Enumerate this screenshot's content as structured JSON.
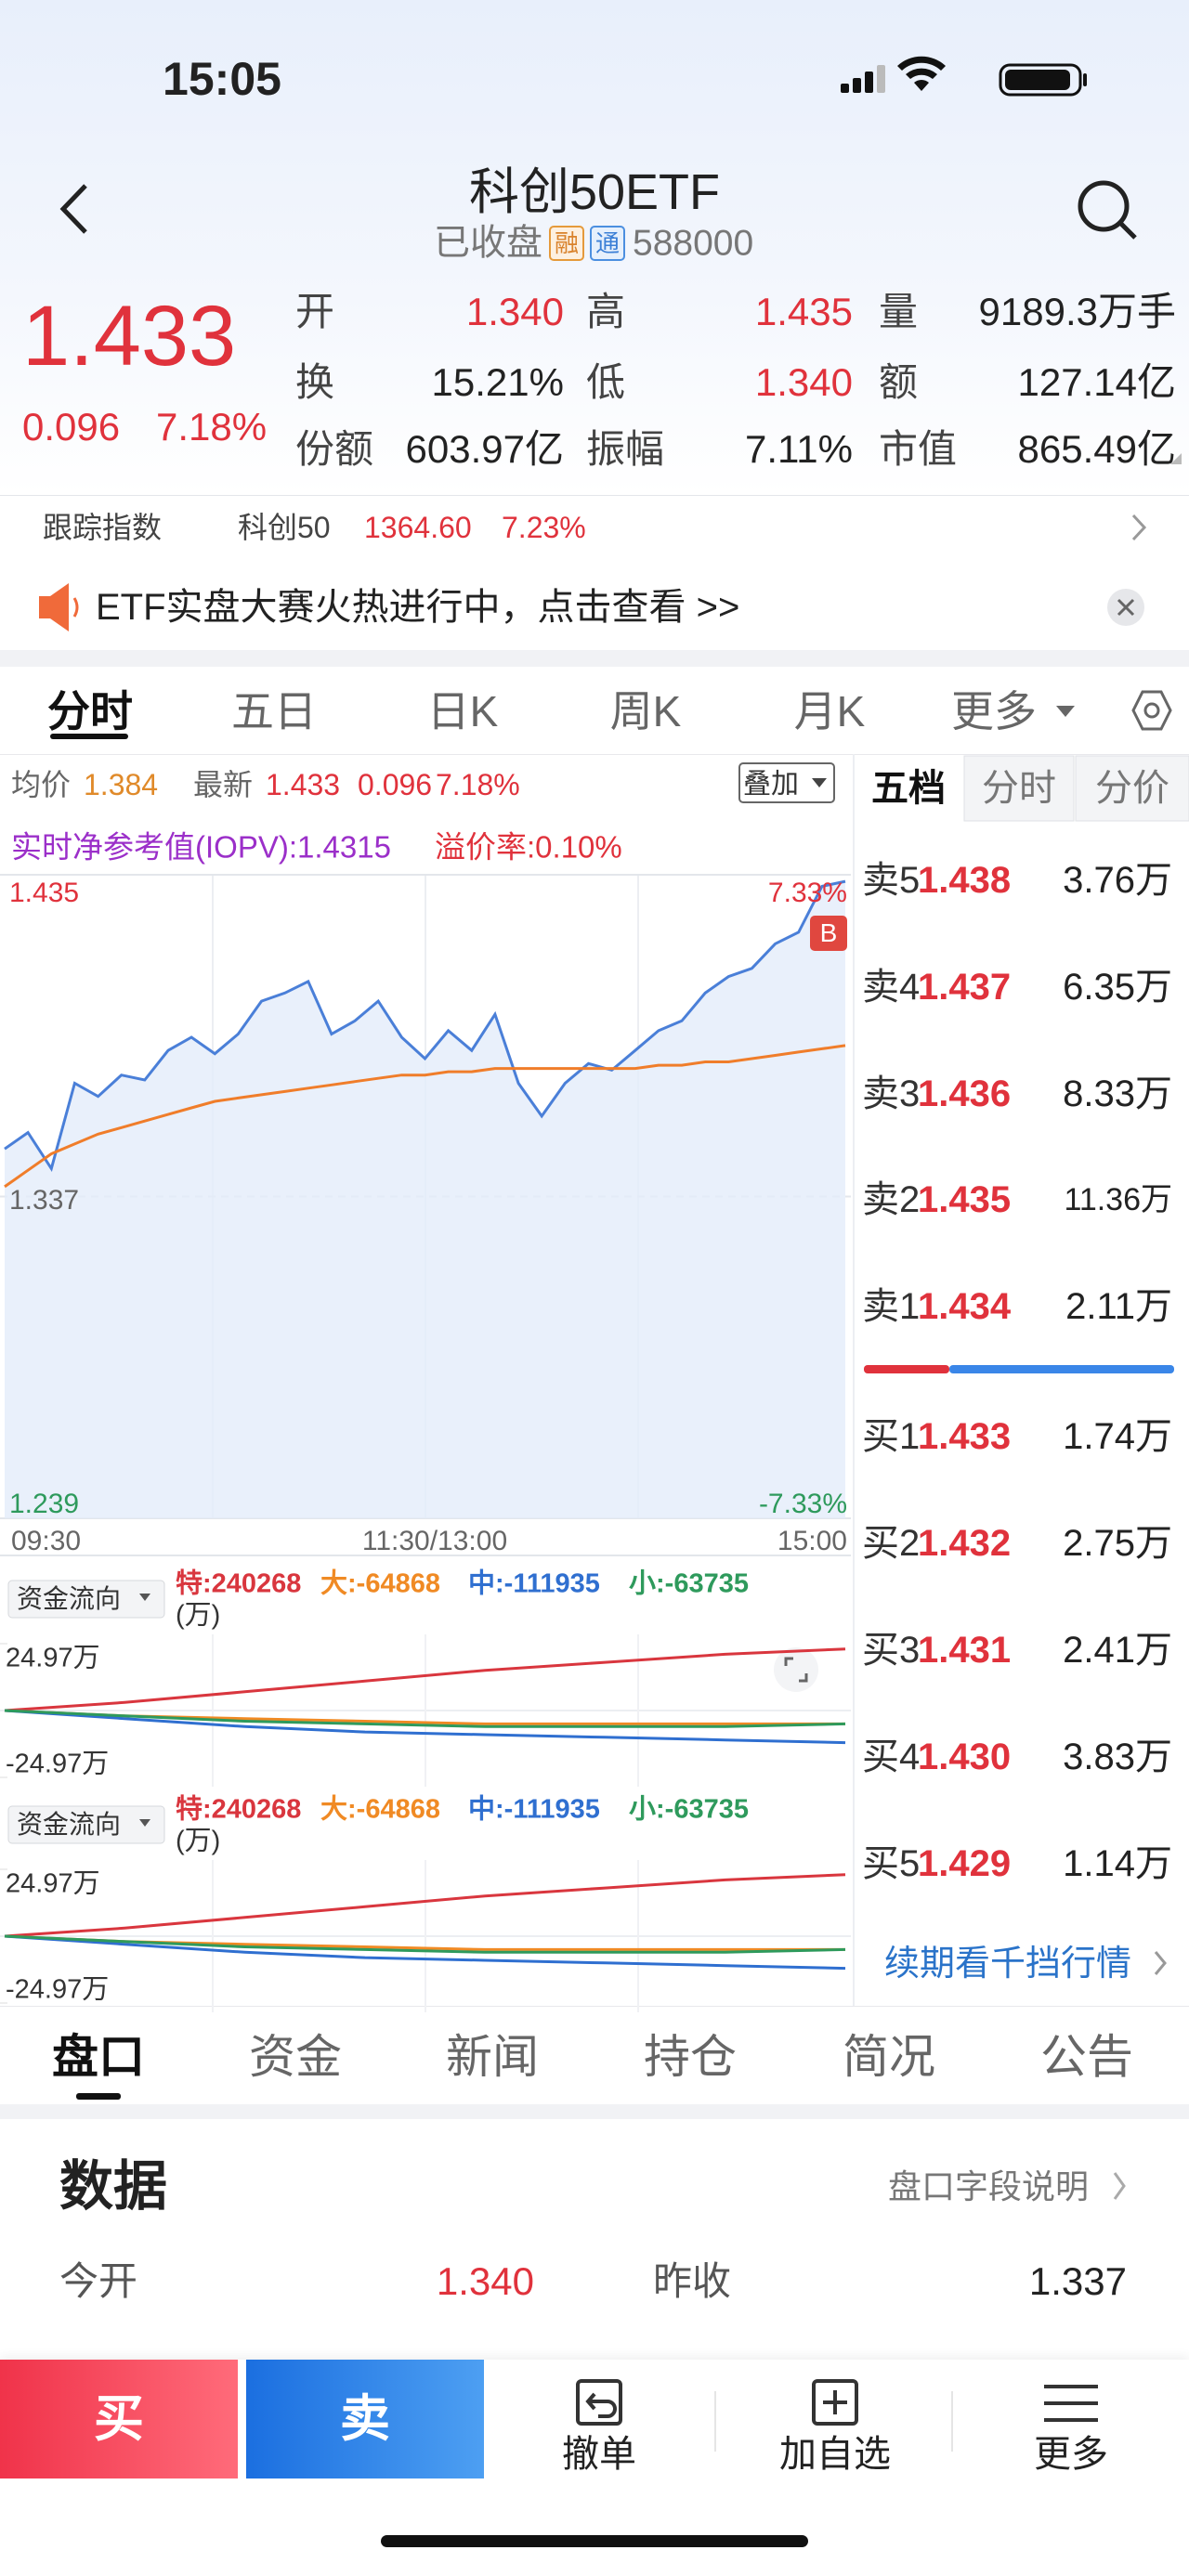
{
  "status_bar": {
    "time": "15:05"
  },
  "header": {
    "title": "科创50ETF",
    "status": "已收盘",
    "badges": [
      "融",
      "通"
    ],
    "code": "588000"
  },
  "quote": {
    "price": "1.433",
    "change": "0.096",
    "change_pct": "7.18%"
  },
  "stats": [
    [
      {
        "label": "开",
        "value": "1.340"
      },
      {
        "label": "高",
        "value": "1.435"
      },
      {
        "label": "量",
        "value": "9189.3万手"
      }
    ],
    [
      {
        "label": "换",
        "value": "15.21%"
      },
      {
        "label": "低",
        "value": "1.340"
      },
      {
        "label": "额",
        "value": "127.14亿"
      }
    ],
    [
      {
        "label": "份额",
        "value": "603.97亿"
      },
      {
        "label": "振幅",
        "value": "7.11%"
      },
      {
        "label": "市值",
        "value": "865.49亿"
      }
    ]
  ],
  "tracking": {
    "label": "跟踪指数",
    "index": "科创50",
    "value": "1364.60",
    "change_pct": "7.23%"
  },
  "banner": {
    "text": "ETF实盘大赛火热进行中，点击查看 >>"
  },
  "chart_tabs": [
    "分时",
    "五日",
    "日K",
    "周K",
    "月K",
    "更多"
  ],
  "intraday": {
    "avg_label": "均价",
    "avg_value": "1.384",
    "last_label": "最新",
    "last_value": "1.433",
    "last_change": "0.096",
    "last_pct": "7.18%",
    "overlay": "叠加",
    "iopv": "实时净参考值(IOPV):1.4315",
    "premium": "溢价率:0.10%",
    "trade_marker": "B",
    "ylim": [
      1.239,
      1.435
    ],
    "yticks": [
      1.435,
      1.337,
      1.239
    ],
    "pct_lim": [
      -7.33,
      7.33
    ],
    "pct_ticks": [
      {
        "value": 7.33,
        "label": "7.33%"
      },
      {
        "value": -7.33,
        "label": "-7.33%"
      }
    ],
    "x_labels": [
      "09:30",
      "11:30/13:00",
      "15:00"
    ],
    "price": {
      "color": "#4a7fd8",
      "values": [
        1.3515,
        1.3565,
        1.3455,
        1.3715,
        1.3675,
        1.374,
        1.3725,
        1.3815,
        1.3855,
        1.3805,
        1.3865,
        1.3965,
        1.399,
        1.4025,
        1.3865,
        1.3905,
        1.3965,
        1.3855,
        1.379,
        1.3875,
        1.3815,
        1.3925,
        1.3715,
        1.3615,
        1.3715,
        1.3775,
        1.3755,
        1.3815,
        1.3875,
        1.3905,
        1.399,
        1.404,
        1.4065,
        1.414,
        1.4175,
        1.4315,
        1.433
      ]
    },
    "avg": {
      "color": "#f07d2a",
      "values": [
        1.34,
        1.345,
        1.35,
        1.353,
        1.356,
        1.358,
        1.36,
        1.362,
        1.364,
        1.366,
        1.367,
        1.368,
        1.369,
        1.37,
        1.371,
        1.372,
        1.373,
        1.374,
        1.374,
        1.375,
        1.375,
        1.376,
        1.376,
        1.376,
        1.376,
        1.376,
        1.376,
        1.376,
        1.377,
        1.377,
        1.378,
        1.378,
        1.379,
        1.38,
        1.381,
        1.382,
        1.383
      ]
    }
  },
  "fund_flow": [
    {
      "menu": "资金流向",
      "unit": "(万)",
      "ylim": [
        -24.97,
        24.97
      ],
      "yticks": [
        {
          "value": 24.97,
          "label": "24.97万"
        },
        {
          "value": -24.97,
          "label": "-24.97万"
        }
      ],
      "series": [
        {
          "name": "特:240268",
          "color": "#d9363e",
          "values": [
            0,
            3,
            7,
            11,
            15,
            18,
            21,
            23
          ]
        },
        {
          "name": "大:-64868",
          "color": "#f08a24",
          "values": [
            0,
            -2,
            -3,
            -4,
            -5,
            -5,
            -5,
            -5
          ]
        },
        {
          "name": "中:-111935",
          "color": "#2f6fd0",
          "values": [
            0,
            -3,
            -6,
            -8,
            -9,
            -10,
            -11,
            -12
          ]
        },
        {
          "name": "小:-63735",
          "color": "#2e9a5c",
          "values": [
            0,
            -2,
            -4,
            -5,
            -6,
            -6,
            -6,
            -5
          ]
        }
      ]
    },
    {
      "menu": "资金流向",
      "unit": "(万)",
      "ylim": [
        -24.97,
        24.97
      ],
      "yticks": [
        {
          "value": 24.97,
          "label": "24.97万"
        },
        {
          "value": -24.97,
          "label": "-24.97万"
        }
      ],
      "series": [
        {
          "name": "特:240268",
          "color": "#d9363e",
          "values": [
            0,
            3,
            7,
            11,
            15,
            18,
            21,
            23
          ]
        },
        {
          "name": "大:-64868",
          "color": "#f08a24",
          "values": [
            0,
            -2,
            -3,
            -4,
            -5,
            -5,
            -5,
            -5
          ]
        },
        {
          "name": "中:-111935",
          "color": "#2f6fd0",
          "values": [
            0,
            -3,
            -6,
            -8,
            -9,
            -10,
            -11,
            -12
          ]
        },
        {
          "name": "小:-63735",
          "color": "#2e9a5c",
          "values": [
            0,
            -2,
            -4,
            -5,
            -6,
            -6,
            -6,
            -5
          ]
        }
      ]
    }
  ],
  "order_book": {
    "tabs": [
      "五档",
      "分时",
      "分价"
    ],
    "asks": [
      {
        "label": "卖5",
        "price": "1.438",
        "volume": "3.76万"
      },
      {
        "label": "卖4",
        "price": "1.437",
        "volume": "6.35万"
      },
      {
        "label": "卖3",
        "price": "1.436",
        "volume": "8.33万"
      },
      {
        "label": "卖2",
        "price": "1.435",
        "volume": "11.36万"
      },
      {
        "label": "卖1",
        "price": "1.434",
        "volume": "2.11万"
      }
    ],
    "bids": [
      {
        "label": "买1",
        "price": "1.433",
        "volume": "1.74万"
      },
      {
        "label": "买2",
        "price": "1.432",
        "volume": "2.75万"
      },
      {
        "label": "买3",
        "price": "1.431",
        "volume": "2.41万"
      },
      {
        "label": "买4",
        "price": "1.430",
        "volume": "3.83万"
      },
      {
        "label": "买5",
        "price": "1.429",
        "volume": "1.14万"
      }
    ],
    "more": "续期看千挡行情"
  },
  "bottom_tabs": [
    "盘口",
    "资金",
    "新闻",
    "持仓",
    "简况",
    "公告"
  ],
  "data_section": {
    "title": "数据",
    "help": "盘口字段说明",
    "rows": [
      [
        {
          "label": "今开",
          "value": "1.340"
        },
        {
          "label": "昨收",
          "value": "1.337"
        }
      ]
    ]
  },
  "actions": {
    "buy": "买",
    "sell": "卖",
    "items": [
      "撤单",
      "加自选",
      "更多"
    ]
  }
}
